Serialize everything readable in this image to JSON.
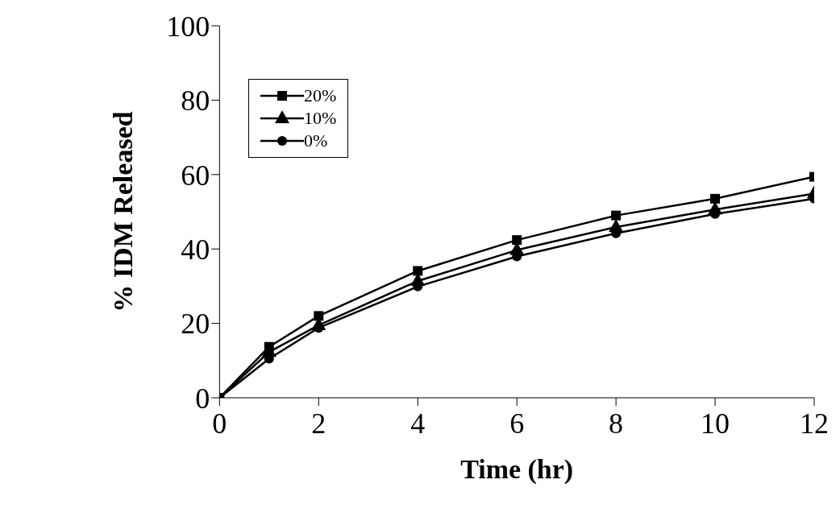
{
  "chart_data": {
    "type": "line",
    "xlabel": "Time (hr)",
    "ylabel": "% IDM Released",
    "x": [
      0,
      1,
      2,
      4,
      6,
      8,
      10,
      12
    ],
    "series": [
      {
        "name": "20%",
        "color": "#000000",
        "marker": "square",
        "values": [
          0,
          13.7,
          22.0,
          34.1,
          42.4,
          49.0,
          53.5,
          59.4
        ]
      },
      {
        "name": "10%",
        "color": "#000000",
        "marker": "triangle",
        "values": [
          0,
          12.3,
          19.5,
          31.4,
          39.7,
          45.9,
          50.6,
          54.9
        ]
      },
      {
        "name": "0%",
        "color": "#000000",
        "marker": "circle",
        "values": [
          0,
          10.5,
          18.8,
          29.9,
          38.0,
          44.2,
          49.4,
          53.5
        ]
      }
    ],
    "xlim": [
      0,
      12
    ],
    "xticks": [
      0,
      2,
      4,
      6,
      8,
      10,
      12
    ],
    "ylim": [
      0,
      100
    ],
    "yticks": [
      0,
      20,
      40,
      60,
      80,
      100
    ],
    "grid": false,
    "legend": "top left",
    "line_style": "solid"
  }
}
